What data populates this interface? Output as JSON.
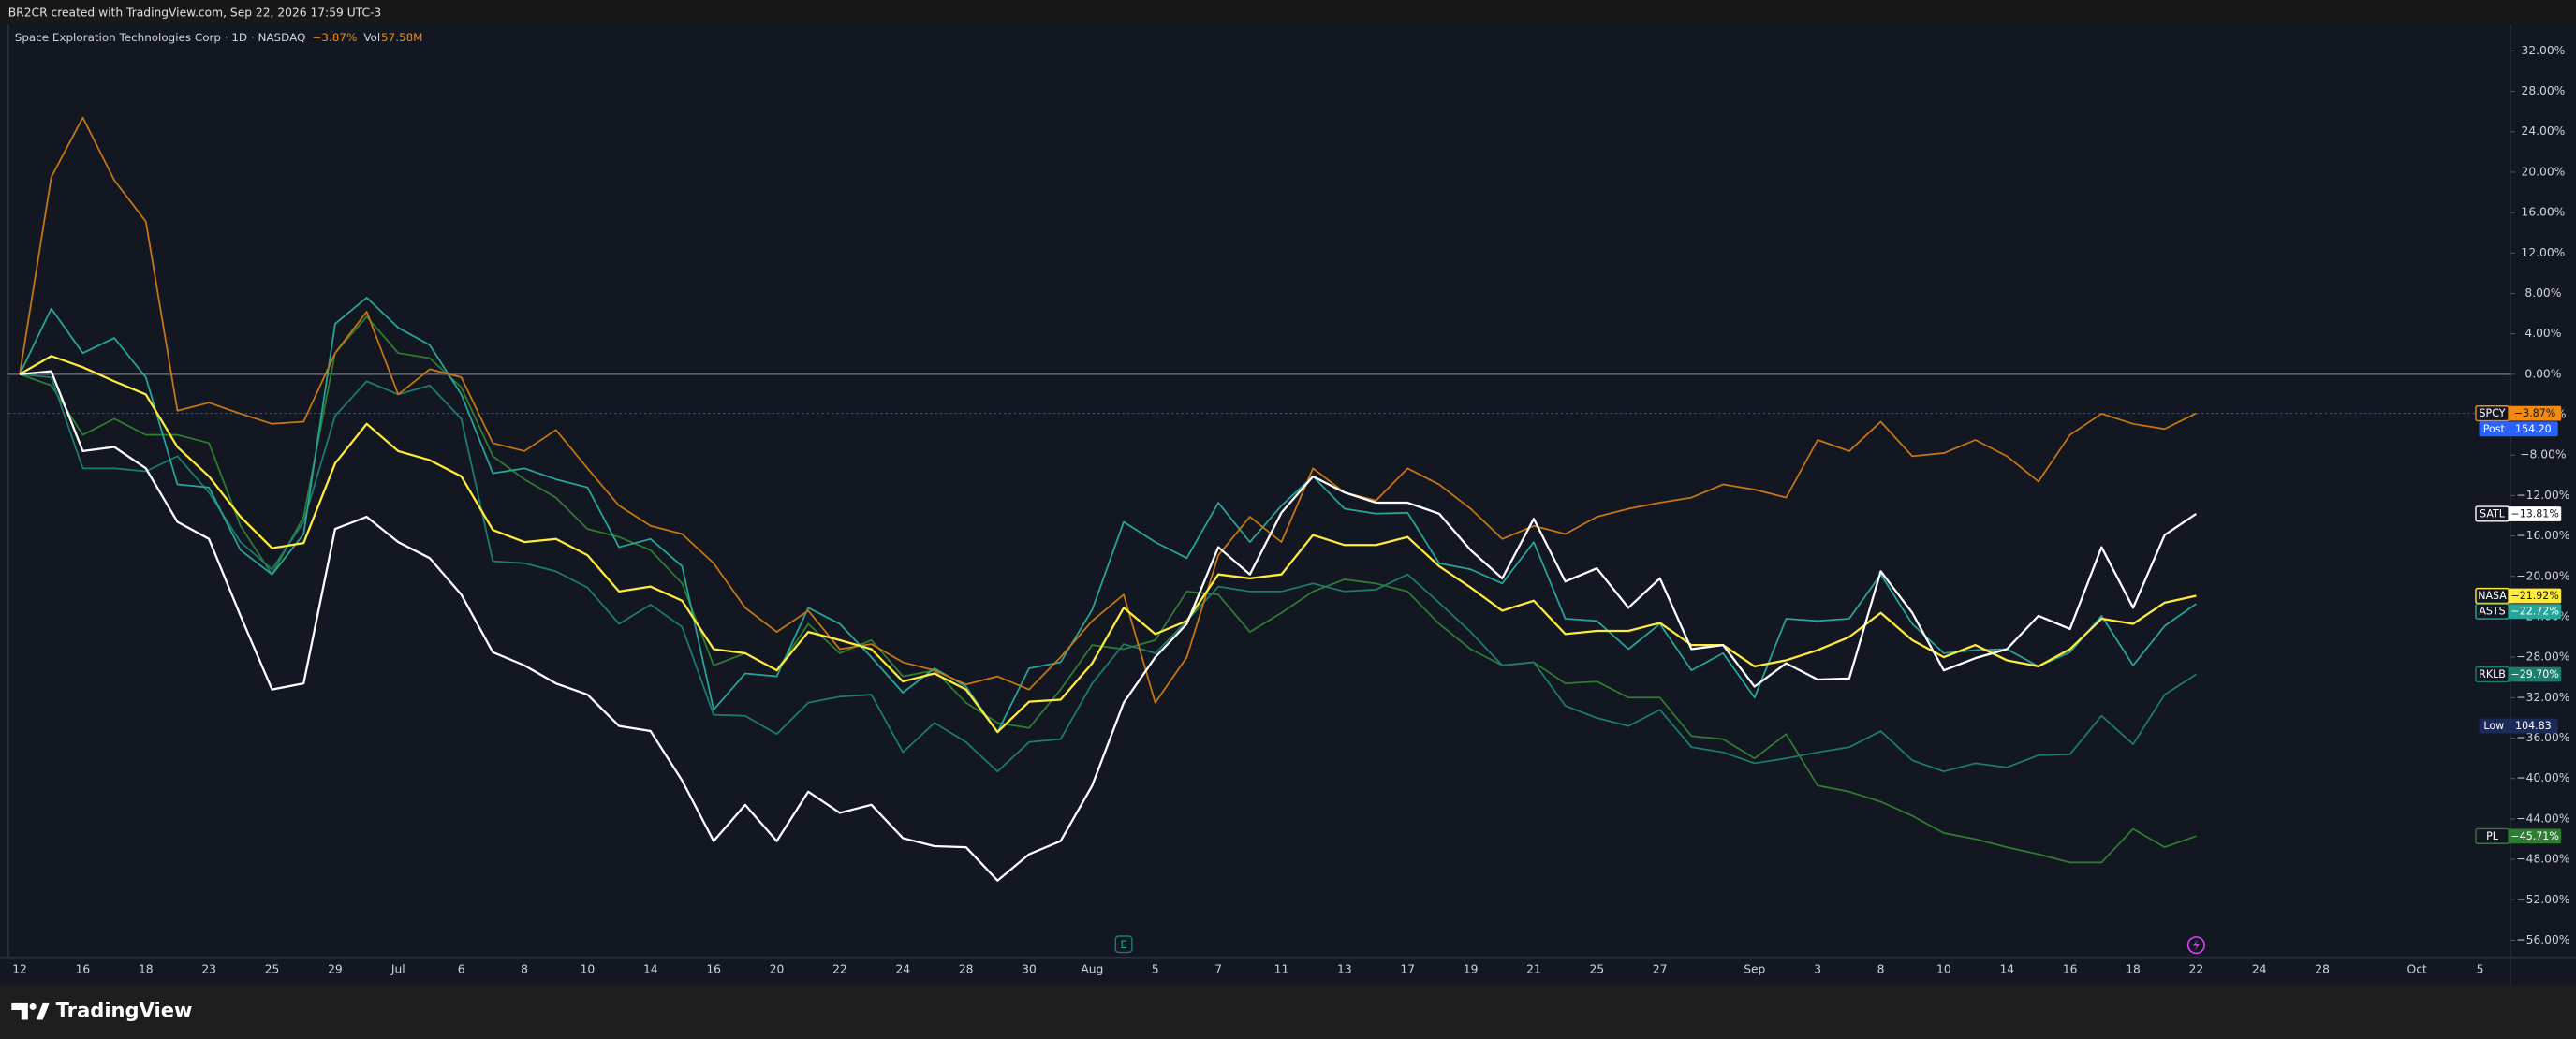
{
  "header": {
    "text": "BR2CR created with TradingView.com, Sep 22, 2026 17:59 UTC-3"
  },
  "chart_data": {
    "type": "line",
    "legend": {
      "symbol": "Space Exploration Technologies Corp · 1D · NASDAQ",
      "change": "−3.87%",
      "volume_label": "Vol",
      "volume": "57.58M"
    },
    "categories": [
      "12",
      null,
      "16",
      null,
      "18",
      null,
      "23",
      null,
      "25",
      null,
      "29",
      null,
      "Jul",
      null,
      "6",
      null,
      "8",
      null,
      "10",
      null,
      "14",
      null,
      "16",
      null,
      "20",
      null,
      "22",
      null,
      "24",
      null,
      "28",
      null,
      "30",
      null,
      "Aug",
      null,
      "5",
      null,
      "7",
      null,
      "11",
      null,
      "13",
      null,
      "17",
      null,
      "19",
      null,
      "21",
      null,
      "25",
      null,
      "27",
      null,
      null,
      "Sep",
      null,
      "3",
      null,
      "8",
      null,
      "10",
      null,
      "14",
      null,
      "16",
      null,
      "18",
      null,
      "22",
      null,
      "24",
      null,
      "28",
      null,
      null,
      "Oct",
      null,
      "5"
    ],
    "series": [
      {
        "name": "SPCY",
        "color": "#c77712",
        "label_color": "#f08a10",
        "label_text": "#131722",
        "last_label": "−3.87%",
        "values": [
          0,
          19.5,
          25.4,
          19.2,
          15.1,
          -3.6,
          -2.8,
          -3.9,
          -4.9,
          -4.7,
          2.1,
          6.2,
          -2.0,
          0.5,
          -0.3,
          -6.8,
          -7.6,
          -5.5,
          -9.3,
          -13.0,
          -15.0,
          -15.8,
          -18.7,
          -23.1,
          -25.5,
          -23.4,
          -27.2,
          -26.7,
          -28.5,
          -29.3,
          -30.7,
          -29.9,
          -31.2,
          -28.0,
          -24.4,
          -21.8,
          -32.5,
          -28.0,
          -17.9,
          -14.1,
          -16.6,
          -9.3,
          -11.7,
          -12.5,
          -9.3,
          -10.9,
          -13.3,
          -16.3,
          -15.0,
          -15.8,
          -14.1,
          -13.3,
          -12.7,
          -12.2,
          -10.9,
          -11.4,
          -12.2,
          -6.5,
          -7.6,
          -4.7,
          -8.1,
          -7.8,
          -6.5,
          -8.1,
          -10.6,
          -6.0,
          -3.9,
          -4.9,
          -5.4,
          -3.87,
          null,
          null,
          null,
          null,
          null,
          null,
          null,
          null,
          null
        ]
      },
      {
        "name": "SATL",
        "color": "#ffffff",
        "label_color": "#ffffff",
        "label_text": "#131722",
        "last_label": "−13.81%",
        "values": [
          0,
          0.3,
          -7.6,
          -7.2,
          -9.3,
          -14.6,
          -16.3,
          -23.9,
          -31.2,
          -30.6,
          -15.3,
          -14.1,
          -16.6,
          -18.2,
          -21.8,
          -27.5,
          -28.8,
          -30.6,
          -31.7,
          -34.8,
          -35.3,
          -40.2,
          -46.2,
          -42.6,
          -46.2,
          -41.3,
          -43.4,
          -42.6,
          -45.9,
          -46.7,
          -46.8,
          -50.1,
          -47.5,
          -46.2,
          -40.7,
          -32.5,
          -28.0,
          -24.7,
          -17.1,
          -19.8,
          -13.7,
          -10.1,
          -11.7,
          -12.7,
          -12.7,
          -13.8,
          -17.4,
          -20.2,
          -14.3,
          -20.5,
          -19.2,
          -23.1,
          -20.2,
          -27.2,
          -26.8,
          -30.9,
          -28.6,
          -30.2,
          -30.1,
          -19.5,
          -23.6,
          -29.3,
          -28.1,
          -27.2,
          -23.9,
          -25.2,
          -17.1,
          -23.1,
          -15.9,
          -13.81,
          null,
          null,
          null,
          null,
          null,
          null,
          null,
          null,
          null
        ]
      },
      {
        "name": "NASA",
        "color": "#ffeb3b",
        "label_color": "#ffeb3b",
        "label_text": "#131722",
        "last_label": "−21.92%",
        "values": [
          0,
          1.8,
          0.7,
          -0.7,
          -2.0,
          -7.2,
          -10.1,
          -14.1,
          -17.2,
          -16.7,
          -8.8,
          -4.9,
          -7.6,
          -8.5,
          -10.1,
          -15.4,
          -16.6,
          -16.3,
          -17.9,
          -21.5,
          -21.0,
          -22.4,
          -27.2,
          -27.6,
          -29.3,
          -25.5,
          -26.3,
          -27.2,
          -30.4,
          -29.6,
          -31.2,
          -35.4,
          -32.4,
          -32.2,
          -28.6,
          -23.1,
          -25.7,
          -24.4,
          -19.8,
          -20.2,
          -19.8,
          -15.9,
          -16.9,
          -16.9,
          -16.1,
          -19.0,
          -21.1,
          -23.4,
          -22.4,
          -25.7,
          -25.4,
          -25.4,
          -24.6,
          -26.8,
          -26.8,
          -28.9,
          -28.3,
          -27.3,
          -26.0,
          -23.6,
          -26.3,
          -28.0,
          -26.8,
          -28.3,
          -28.9,
          -27.2,
          -24.2,
          -24.7,
          -22.6,
          -21.92,
          null,
          null,
          null,
          null,
          null,
          null,
          null,
          null,
          null
        ]
      },
      {
        "name": "ASTS",
        "color": "#26a69a",
        "label_color": "#26a69a",
        "label_text": "#ffffff",
        "last_label": "−22.72%",
        "values": [
          0,
          6.5,
          2.1,
          3.6,
          -0.3,
          -10.9,
          -11.2,
          -17.4,
          -19.8,
          -15.8,
          5.0,
          7.6,
          4.6,
          2.9,
          -2.0,
          -9.8,
          -9.3,
          -10.4,
          -11.2,
          -17.1,
          -16.3,
          -19.0,
          -33.2,
          -29.6,
          -29.9,
          -23.1,
          -24.7,
          -28.0,
          -31.5,
          -29.1,
          -30.9,
          -35.4,
          -29.1,
          -28.5,
          -23.3,
          -14.6,
          -16.6,
          -18.2,
          -12.7,
          -16.6,
          -13.0,
          -10.1,
          -13.3,
          -13.8,
          -13.7,
          -18.7,
          -19.3,
          -20.7,
          -16.6,
          -24.2,
          -24.4,
          -27.2,
          -24.7,
          -29.3,
          -27.6,
          -32.0,
          -24.2,
          -24.4,
          -24.2,
          -19.8,
          -24.7,
          -27.6,
          -27.3,
          -27.2,
          -28.9,
          -27.5,
          -23.9,
          -28.8,
          -24.9,
          -22.72,
          null,
          null,
          null,
          null,
          null,
          null,
          null,
          null,
          null
        ]
      },
      {
        "name": "RKLB",
        "color": "#1b7d6c",
        "label_color": "#1b7d6c",
        "label_text": "#ffffff",
        "last_label": "−29.70%",
        "values": [
          0,
          -0.3,
          -9.3,
          -9.3,
          -9.6,
          -8.1,
          -11.7,
          -16.6,
          -19.3,
          -14.6,
          -4.1,
          -0.7,
          -2.0,
          -1.1,
          -4.4,
          -18.5,
          -18.7,
          -19.5,
          -21.1,
          -24.7,
          -22.8,
          -25.0,
          -33.7,
          -33.8,
          -35.6,
          -32.5,
          -31.9,
          -31.7,
          -37.4,
          -34.5,
          -36.4,
          -39.3,
          -36.4,
          -36.1,
          -30.6,
          -26.7,
          -27.6,
          -24.4,
          -21.0,
          -21.5,
          -21.5,
          -20.7,
          -21.5,
          -21.3,
          -19.8,
          -22.6,
          -25.5,
          -28.8,
          -28.5,
          -32.8,
          -34.0,
          -34.8,
          -33.2,
          -36.9,
          -37.4,
          -38.5,
          -38.0,
          -37.4,
          -36.9,
          -35.3,
          -38.2,
          -39.3,
          -38.5,
          -38.9,
          -37.7,
          -37.6,
          -33.8,
          -36.6,
          -31.7,
          -29.7,
          null,
          null,
          null,
          null,
          null,
          null,
          null,
          null,
          null
        ]
      },
      {
        "name": "PL",
        "color": "#2e7d32",
        "label_color": "#2e7d32",
        "label_text": "#ffffff",
        "last_label": "−45.71%",
        "values": [
          0,
          -1.1,
          -6.0,
          -4.4,
          -6.0,
          -6.0,
          -6.8,
          -15.0,
          -19.8,
          -14.1,
          2.1,
          5.7,
          2.1,
          1.6,
          -1.3,
          -8.1,
          -10.4,
          -12.2,
          -15.3,
          -16.1,
          -17.4,
          -20.7,
          -28.8,
          -27.6,
          -29.3,
          -24.7,
          -27.6,
          -26.3,
          -29.9,
          -29.3,
          -32.5,
          -34.5,
          -35.0,
          -31.2,
          -26.8,
          -27.2,
          -26.3,
          -21.5,
          -21.8,
          -25.5,
          -23.6,
          -21.5,
          -20.3,
          -20.7,
          -21.5,
          -24.7,
          -27.2,
          -28.8,
          -28.5,
          -30.6,
          -30.4,
          -32.0,
          -32.0,
          -35.8,
          -36.1,
          -38.0,
          -35.6,
          -40.7,
          -41.3,
          -42.3,
          -43.7,
          -45.4,
          -46.0,
          -46.8,
          -47.5,
          -48.3,
          -48.3,
          -45.0,
          -46.8,
          -45.71,
          null,
          null,
          null,
          null,
          null,
          null,
          null,
          null,
          null
        ]
      }
    ],
    "price_labels": [
      {
        "name": "Post",
        "value": "154.20",
        "level": -5.4,
        "color": "#2962ff"
      },
      {
        "name": "Low",
        "value": "104.83",
        "level": -34.8,
        "color": "#1c2a5a"
      }
    ],
    "events": [
      "E"
    ],
    "ylim": [
      -57.7,
      34.6
    ],
    "yticks": [
      {
        "value": 32,
        "label": "32.00%"
      },
      {
        "value": 28,
        "label": "28.00%"
      },
      {
        "value": 24,
        "label": "24.00%"
      },
      {
        "value": 20,
        "label": "20.00%"
      },
      {
        "value": 16,
        "label": "16.00%"
      },
      {
        "value": 12,
        "label": "12.00%"
      },
      {
        "value": 8,
        "label": "8.00%"
      },
      {
        "value": 4,
        "label": "4.00%"
      },
      {
        "value": 0,
        "label": "0.00%"
      },
      {
        "value": -4,
        "label": "−4.00%"
      },
      {
        "value": -8,
        "label": "−8.00%"
      },
      {
        "value": -12,
        "label": "−12.00%"
      },
      {
        "value": -16,
        "label": "−16.00%"
      },
      {
        "value": -20,
        "label": "−20.00%"
      },
      {
        "value": -24,
        "label": "−24.00%"
      },
      {
        "value": -28,
        "label": "−28.00%"
      },
      {
        "value": -32,
        "label": "−32.00%"
      },
      {
        "value": -36,
        "label": "−36.00%"
      },
      {
        "value": -40,
        "label": "−40.00%"
      },
      {
        "value": -44,
        "label": "−44.00%"
      },
      {
        "value": -48,
        "label": "−48.00%"
      },
      {
        "value": -52,
        "label": "−52.00%"
      },
      {
        "value": -56,
        "label": "−56.00%"
      }
    ],
    "zero_line": true,
    "grid": false
  },
  "footer": {
    "brand": "TradingView"
  }
}
